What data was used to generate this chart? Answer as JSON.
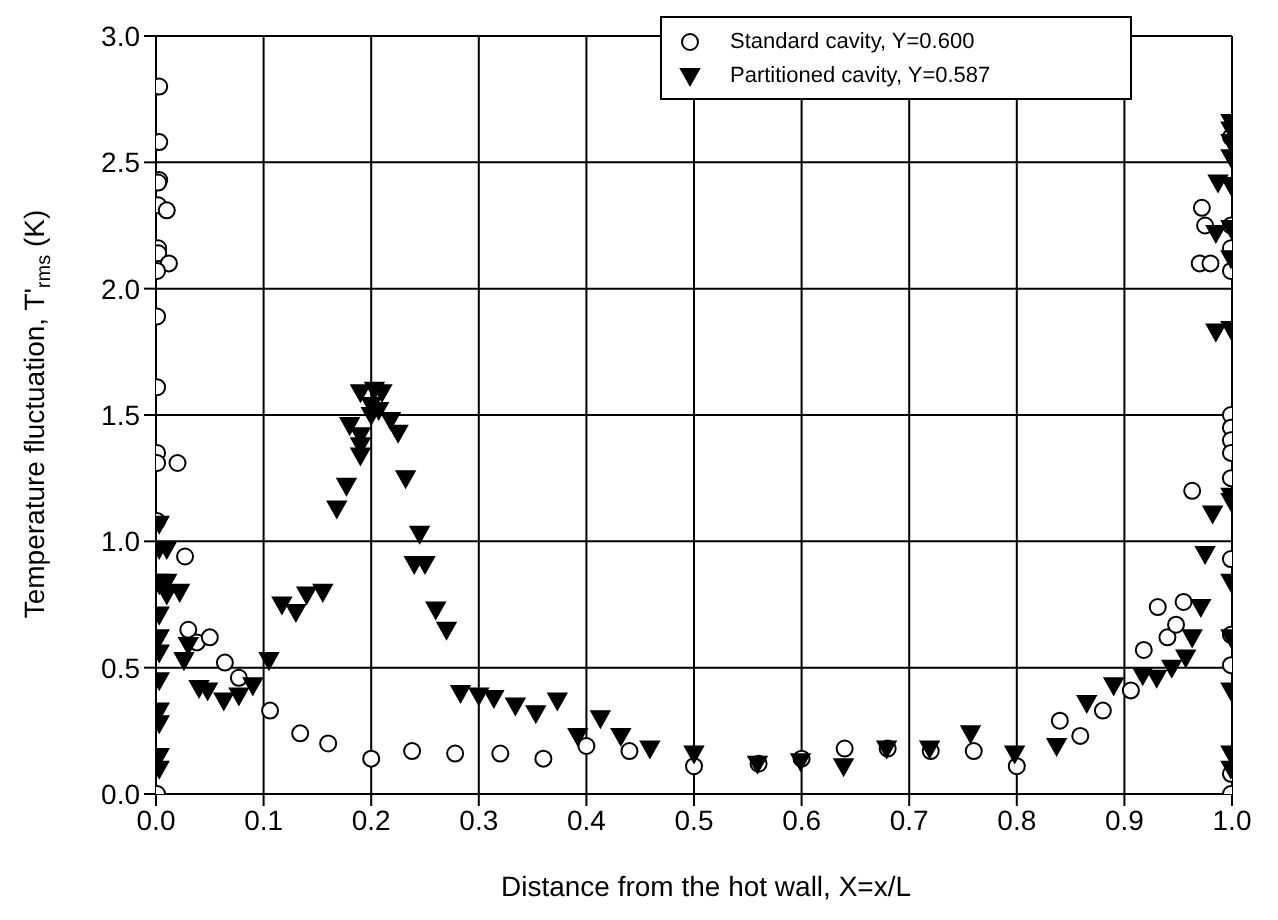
{
  "chart_data": {
    "type": "scatter",
    "xlabel": "Distance from the hot wall, X=x/L",
    "ylabel": "Temperature fluctuation, T'$_{rms}$ (K)",
    "xlim": [
      0,
      1
    ],
    "ylim": [
      0,
      3
    ],
    "xticks": [
      {
        "value": 0,
        "label": "0.0"
      },
      {
        "value": 0.1,
        "label": "0.1"
      },
      {
        "value": 0.2,
        "label": "0.2"
      },
      {
        "value": 0.3,
        "label": "0.3"
      },
      {
        "value": 0.4,
        "label": "0.4"
      },
      {
        "value": 0.5,
        "label": "0.5"
      },
      {
        "value": 0.6,
        "label": "0.6"
      },
      {
        "value": 0.7,
        "label": "0.7"
      },
      {
        "value": 0.8,
        "label": "0.8"
      },
      {
        "value": 0.9,
        "label": "0.9"
      },
      {
        "value": 1,
        "label": "1.0"
      }
    ],
    "yticks": [
      {
        "value": 0,
        "label": "0.0"
      },
      {
        "value": 0.5,
        "label": "0.5"
      },
      {
        "value": 1,
        "label": "1.0"
      },
      {
        "value": 1.5,
        "label": "1.5"
      },
      {
        "value": 2,
        "label": "2.0"
      },
      {
        "value": 2.5,
        "label": "2.5"
      },
      {
        "value": 3,
        "label": "3.0"
      }
    ],
    "grid": true,
    "legend": "top",
    "series": [
      {
        "name": "Standard cavity, Y=0.600",
        "color": "#000000",
        "marker": "circle",
        "x": [
          0.003,
          0.003,
          0.003,
          0.002,
          0.002,
          0.01,
          0.002,
          0.002,
          0.012,
          0.001,
          0.001,
          0.001,
          0.001,
          0.001,
          0.02,
          0.001,
          0.027,
          0.03,
          0.038,
          0.05,
          0.064,
          0.077,
          0.106,
          0.134,
          0.16,
          0.2,
          0.238,
          0.278,
          0.32,
          0.36,
          0.4,
          0.44,
          0.5,
          0.56,
          0.6,
          0.64,
          0.68,
          0.72,
          0.76,
          0.8,
          0.84,
          0.859,
          0.88,
          0.906,
          0.918,
          0.931,
          0.94,
          0.948,
          0.955,
          0.963,
          0.972,
          0.975,
          0.97,
          0.98,
          0.999,
          0.999,
          0.999,
          0.999,
          0.999,
          0.999,
          0.999,
          0.999,
          0.999,
          0.999,
          0.999,
          0.999,
          0.999,
          0.999,
          0.001
        ],
        "values": [
          2.8,
          2.58,
          2.43,
          2.42,
          2.33,
          2.31,
          2.16,
          2.14,
          2.1,
          2.07,
          1.89,
          1.61,
          1.35,
          1.31,
          1.31,
          1.08,
          0.94,
          0.65,
          0.6,
          0.62,
          0.52,
          0.46,
          0.33,
          0.24,
          0.2,
          0.14,
          0.17,
          0.16,
          0.16,
          0.14,
          0.19,
          0.17,
          0.11,
          0.12,
          0.14,
          0.18,
          0.18,
          0.17,
          0.17,
          0.11,
          0.29,
          0.23,
          0.33,
          0.41,
          0.57,
          0.74,
          0.62,
          0.67,
          0.76,
          1.2,
          2.32,
          2.25,
          2.1,
          2.1,
          2.6,
          2.25,
          2.16,
          2.07,
          1.5,
          1.45,
          1.4,
          1.35,
          1.25,
          0.93,
          0.63,
          0.51,
          0.08,
          0.0,
          0.0
        ]
      },
      {
        "name": "Partitioned cavity, Y=0.587",
        "color": "#000000",
        "marker": "triangle-down",
        "x": [
          0.003,
          0.003,
          0.003,
          0.003,
          0.003,
          0.003,
          0.003,
          0.003,
          0.003,
          0.003,
          0.003,
          0.003,
          0.01,
          0.01,
          0.01,
          0.022,
          0.026,
          0.03,
          0.04,
          0.048,
          0.063,
          0.077,
          0.09,
          0.105,
          0.117,
          0.13,
          0.14,
          0.155,
          0.168,
          0.177,
          0.18,
          0.19,
          0.19,
          0.19,
          0.19,
          0.2,
          0.2,
          0.203,
          0.207,
          0.21,
          0.218,
          0.225,
          0.232,
          0.245,
          0.24,
          0.25,
          0.26,
          0.27,
          0.283,
          0.3,
          0.314,
          0.334,
          0.353,
          0.373,
          0.392,
          0.413,
          0.432,
          0.459,
          0.5,
          0.559,
          0.599,
          0.639,
          0.679,
          0.719,
          0.757,
          0.798,
          0.837,
          0.865,
          0.89,
          0.917,
          0.93,
          0.944,
          0.957,
          0.963,
          0.971,
          0.975,
          0.982,
          0.985,
          0.985,
          0.987,
          0.999,
          0.999,
          0.999,
          0.999,
          0.999,
          0.999,
          0.999,
          0.999,
          0.999,
          0.999,
          0.999,
          0.999,
          0.999,
          0.999,
          0.999
        ],
        "values": [
          1.07,
          0.97,
          0.84,
          0.83,
          0.71,
          0.62,
          0.56,
          0.45,
          0.33,
          0.28,
          0.15,
          0.1,
          0.97,
          0.84,
          0.79,
          0.8,
          0.53,
          0.59,
          0.42,
          0.41,
          0.37,
          0.39,
          0.43,
          0.53,
          0.75,
          0.72,
          0.79,
          0.8,
          1.13,
          1.22,
          1.46,
          1.42,
          1.38,
          1.34,
          1.59,
          1.54,
          1.5,
          1.6,
          1.52,
          1.59,
          1.48,
          1.43,
          1.25,
          1.03,
          0.91,
          0.91,
          0.73,
          0.65,
          0.4,
          0.39,
          0.38,
          0.35,
          0.32,
          0.37,
          0.23,
          0.3,
          0.23,
          0.18,
          0.16,
          0.12,
          0.13,
          0.11,
          0.18,
          0.18,
          0.24,
          0.16,
          0.19,
          0.36,
          0.43,
          0.47,
          0.46,
          0.5,
          0.54,
          0.62,
          0.74,
          0.95,
          1.11,
          1.83,
          2.22,
          2.42,
          2.66,
          2.63,
          2.58,
          2.52,
          2.41,
          2.24,
          2.12,
          1.84,
          1.18,
          1.16,
          0.84,
          0.62,
          0.41,
          0.16,
          0.1
        ]
      }
    ]
  }
}
